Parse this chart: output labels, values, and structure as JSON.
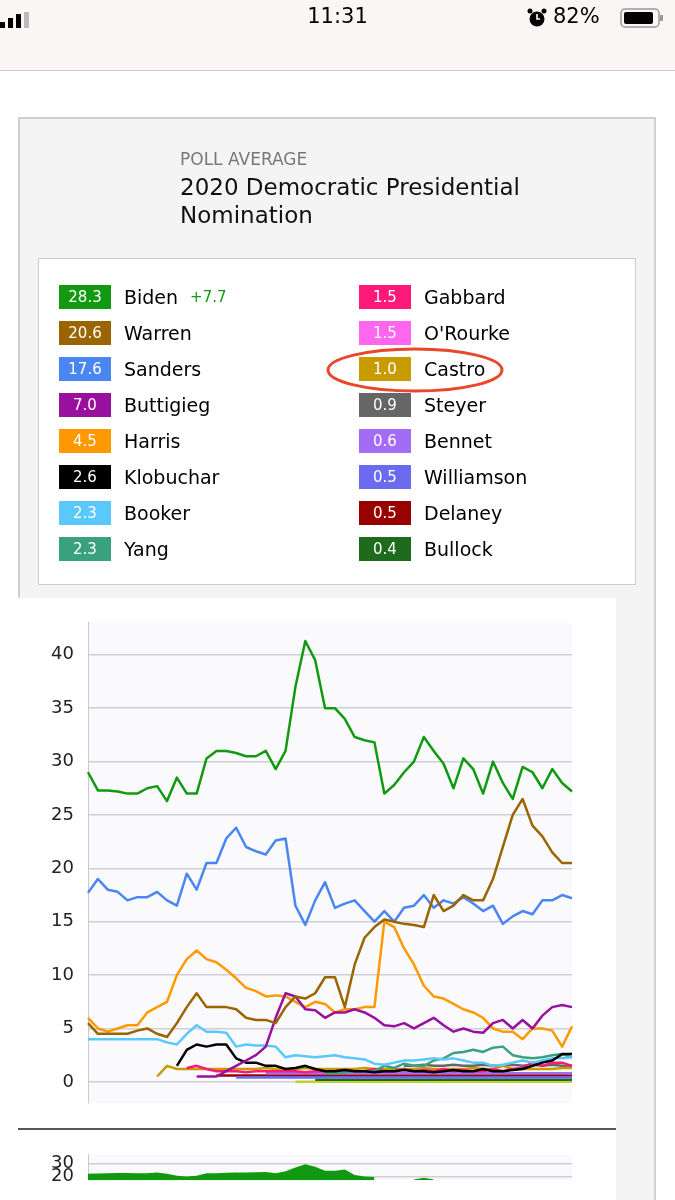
{
  "chart_data": [
    {
      "type": "line",
      "title": "2020 Democratic Presidential Nomination",
      "subtitle": "POLL AVERAGE",
      "legend": "top",
      "grid": "y",
      "tick_labels": "y",
      "ylim": [
        -2,
        43
      ],
      "yticks": [
        0,
        5,
        10,
        15,
        20,
        25,
        30,
        35,
        40
      ],
      "categories": [
        null,
        null,
        null,
        null,
        null,
        null,
        null,
        null,
        null,
        null,
        null,
        null,
        null,
        null,
        null,
        null,
        null,
        null,
        null,
        null,
        null,
        null,
        null,
        null,
        null,
        null,
        null,
        null,
        null,
        null,
        null,
        null,
        null,
        null,
        null,
        null,
        null,
        null,
        null,
        null,
        null,
        null,
        null,
        null,
        null,
        null,
        null,
        null,
        null,
        null
      ],
      "annotations": [
        "28.3",
        "20.6",
        "17.6",
        "7.0",
        "4.5",
        "2.6",
        "2.3",
        "2.3",
        "1.5",
        "1.5",
        "1.0",
        "0.9",
        "0.6",
        "0.5",
        "0.5",
        "0.4",
        "+7.7",
        "11:31",
        "82%"
      ],
      "series": [
        {
          "name": "Biden",
          "color": "#119911",
          "values": [
            29,
            27.3,
            27.3,
            27.2,
            27,
            27,
            27.5,
            27.7,
            26.3,
            28.5,
            27,
            27,
            30.3,
            31,
            31,
            30.8,
            30.5,
            30.5,
            31,
            29.3,
            31,
            37,
            41.3,
            39.5,
            35,
            35,
            34,
            32.3,
            32,
            31.8,
            27,
            27.8,
            29,
            30,
            32.3,
            31,
            29.8,
            27.5,
            30.3,
            29.3,
            27,
            30,
            28,
            26.5,
            29.5,
            29,
            27.5,
            29.3,
            28,
            27.2
          ]
        },
        {
          "name": "Warren",
          "color": "#9a6400",
          "values": [
            5.5,
            4.5,
            4.5,
            4.5,
            4.5,
            4.8,
            5,
            4.5,
            4.2,
            5.5,
            7,
            8.3,
            7,
            7,
            7,
            6.8,
            6,
            5.8,
            5.8,
            5.5,
            7,
            8,
            7.8,
            8.3,
            9.8,
            9.8,
            7,
            11,
            13.5,
            14.5,
            15.2,
            15,
            14.8,
            14.7,
            14.5,
            17.5,
            16,
            16.5,
            17.5,
            17,
            17,
            19,
            22,
            25,
            26.5,
            24,
            23,
            21.5,
            20.5,
            20.5
          ]
        },
        {
          "name": "Sanders",
          "color": "#4a86f2",
          "values": [
            17.7,
            19,
            18,
            17.8,
            17,
            17.3,
            17.3,
            17.8,
            17,
            16.5,
            19.5,
            18,
            20.5,
            20.5,
            22.8,
            23.8,
            22,
            21.6,
            21.3,
            22.6,
            22.8,
            16.5,
            14.7,
            17,
            18.7,
            16.3,
            16.7,
            17,
            16,
            15,
            16,
            15,
            16.3,
            16.5,
            17.5,
            16.3,
            17,
            16.7,
            17.3,
            16.7,
            16,
            16.5,
            14.8,
            15.5,
            16,
            15.7,
            17,
            17,
            17.5,
            17.2
          ]
        },
        {
          "name": "Buttigieg",
          "color": "#990f9e",
          "values": [
            null,
            null,
            null,
            null,
            null,
            null,
            null,
            null,
            null,
            null,
            null,
            0.5,
            0.5,
            0.5,
            1,
            1.5,
            2,
            2.5,
            3.3,
            6,
            8.3,
            8,
            6.8,
            6.7,
            6,
            6.5,
            6.5,
            6.8,
            6.5,
            6,
            5.3,
            5.2,
            5.5,
            5,
            5.5,
            6,
            5.3,
            4.7,
            5,
            4.7,
            4.6,
            5.5,
            5.8,
            5,
            5.8,
            5,
            6.2,
            7,
            7.2,
            7
          ]
        },
        {
          "name": "Harris",
          "color": "#ff9900",
          "values": [
            6,
            5,
            4.7,
            5,
            5.3,
            5.3,
            6.5,
            7,
            7.5,
            10,
            11.5,
            12.3,
            11.5,
            11.2,
            10.5,
            9.7,
            8.8,
            8.5,
            8,
            8.1,
            8,
            7.5,
            7,
            7.5,
            7.3,
            6.5,
            6.8,
            6.8,
            7,
            7,
            15,
            14.5,
            12.5,
            11,
            9,
            8,
            7.8,
            7.3,
            6.8,
            6.5,
            6,
            5,
            4.7,
            4.7,
            4,
            5,
            5,
            4.8,
            3.3,
            5.2
          ]
        },
        {
          "name": "Klobuchar",
          "color": "#000000",
          "values": [
            null,
            null,
            null,
            null,
            null,
            null,
            null,
            null,
            null,
            1.5,
            3,
            3.5,
            3.3,
            3.5,
            3.5,
            2.2,
            1.8,
            1.8,
            1.5,
            1.5,
            1.2,
            1.3,
            1.5,
            1.2,
            1,
            1,
            1.1,
            1,
            1,
            0.9,
            1,
            1,
            1.1,
            1,
            1,
            0.9,
            1,
            1.1,
            1,
            1,
            1.2,
            1,
            1,
            1.1,
            1.2,
            1.5,
            1.8,
            2,
            2.6,
            2.6
          ]
        },
        {
          "name": "Booker",
          "color": "#5ac8fa",
          "values": [
            4,
            4,
            4,
            4,
            4,
            4,
            4,
            4,
            3.7,
            3.5,
            4.5,
            5.3,
            4.7,
            4.7,
            4.6,
            3.3,
            3.5,
            3.4,
            3.4,
            3.3,
            2.3,
            2.5,
            2.4,
            2.3,
            2.4,
            2.5,
            2.3,
            2.2,
            2.1,
            1.7,
            1.6,
            1.8,
            2,
            2,
            2.1,
            2.2,
            2.1,
            2.2,
            2,
            1.8,
            1.8,
            1.5,
            1.6,
            1.8,
            2,
            1.8,
            2,
            2.2,
            2.2,
            2.3
          ]
        },
        {
          "name": "Yang",
          "color": "#3aa17e",
          "values": [
            null,
            null,
            null,
            null,
            null,
            null,
            null,
            null,
            null,
            null,
            null,
            null,
            null,
            null,
            null,
            null,
            null,
            null,
            null,
            null,
            null,
            null,
            null,
            null,
            0.8,
            0.8,
            0.9,
            1,
            1,
            1,
            1.5,
            1.3,
            1.7,
            1.5,
            1.5,
            2,
            2.2,
            2.7,
            2.8,
            3,
            2.8,
            3.2,
            3.3,
            2.5,
            2.3,
            2.2,
            2.3,
            2.5,
            2.6,
            2.3
          ]
        },
        {
          "name": "Gabbard",
          "color": "#ff1a7a",
          "values": [
            null,
            null,
            null,
            null,
            null,
            null,
            null,
            null,
            null,
            null,
            1.3,
            1.5,
            1.2,
            1,
            1,
            1,
            0.9,
            1,
            1,
            1,
            1,
            1,
            0.9,
            1,
            1,
            1,
            1.1,
            1,
            1,
            1.2,
            1,
            1,
            1.2,
            1,
            1.1,
            1,
            1.2,
            1,
            1.1,
            1,
            1,
            1.2,
            1,
            1.2,
            1.3,
            1.8,
            1.5,
            1.8,
            1.8,
            1.5
          ]
        },
        {
          "name": "O'Rourke",
          "color": "#ff66ee",
          "values": [
            null,
            null,
            null,
            null,
            null,
            null,
            null,
            null,
            null,
            null,
            null,
            null,
            null,
            null,
            null,
            null,
            null,
            null,
            null,
            null,
            null,
            null,
            null,
            null,
            null,
            null,
            null,
            null,
            null,
            null,
            null,
            null,
            null,
            null,
            null,
            null,
            null,
            null,
            null,
            null,
            null,
            null,
            null,
            null,
            null,
            null,
            null,
            null,
            null,
            null
          ]
        },
        {
          "name": "Castro",
          "color": "#c89b00",
          "values": [
            null,
            null,
            null,
            null,
            null,
            null,
            null,
            0.5,
            1.5,
            1.2,
            1.2,
            1.2,
            1.2,
            1.2,
            1.2,
            1.2,
            1.2,
            1.2,
            1.3,
            1.2,
            1.2,
            1.2,
            1.3,
            1.2,
            1.2,
            1.2,
            1.2,
            1.2,
            1.3,
            1.2,
            1.2,
            1.2,
            1.2,
            1.2,
            1.3,
            1.2,
            1.2,
            1.2,
            1.2,
            1.3,
            1.2,
            1.2,
            1.5,
            1.2,
            1.2,
            1.2,
            1.2,
            1.2,
            1.3,
            1.3
          ]
        },
        {
          "name": "Steyer",
          "color": "#666666",
          "values": [
            null,
            null,
            null,
            null,
            null,
            null,
            null,
            null,
            null,
            null,
            null,
            null,
            null,
            null,
            null,
            null,
            null,
            null,
            null,
            null,
            null,
            null,
            null,
            null,
            null,
            null,
            null,
            null,
            null,
            null,
            null,
            null,
            1.5,
            1.5,
            1.6,
            1.5,
            1.5,
            1.6,
            1.5,
            1.5,
            1.6,
            1.5,
            1.5,
            1.6,
            1.5,
            1.6,
            1.5,
            1.6,
            1.5,
            1.5
          ]
        },
        {
          "name": "Bennet",
          "color": "#a36cf5",
          "values": [
            null,
            null,
            null,
            null,
            null,
            null,
            null,
            null,
            null,
            null,
            null,
            null,
            null,
            null,
            null,
            null,
            null,
            null,
            0.8,
            0.8,
            0.8,
            0.8,
            0.8,
            0.8,
            0.8,
            0.8,
            0.8,
            0.8,
            0.8,
            0.8,
            0.8,
            0.8,
            0.8,
            0.8,
            0.8,
            0.8,
            0.8,
            0.8,
            0.8,
            0.8,
            0.8,
            0.8,
            0.8,
            0.8,
            0.8,
            0.8,
            0.8,
            0.8,
            0.8,
            0.8
          ]
        },
        {
          "name": "Williamson",
          "color": "#6b6bf0",
          "values": [
            null,
            null,
            null,
            null,
            null,
            null,
            null,
            null,
            null,
            null,
            null,
            null,
            null,
            null,
            null,
            0.4,
            0.4,
            0.4,
            0.4,
            0.4,
            0.4,
            0.4,
            0.4,
            0.4,
            0.4,
            0.4,
            0.4,
            0.4,
            0.4,
            0.4,
            0.4,
            0.4,
            0.4,
            0.4,
            0.4,
            0.4,
            0.4,
            0.4,
            0.4,
            0.4,
            0.4,
            0.4,
            0.4,
            0.4,
            0.4,
            0.4,
            0.4,
            0.4,
            0.4,
            0.4
          ]
        },
        {
          "name": "Delaney",
          "color": "#990000",
          "values": [
            null,
            null,
            null,
            null,
            null,
            null,
            null,
            null,
            null,
            null,
            null,
            null,
            null,
            0.6,
            0.6,
            0.6,
            0.6,
            0.6,
            0.6,
            0.6,
            0.6,
            0.6,
            0.6,
            0.6,
            0.6,
            0.6,
            0.6,
            0.6,
            0.6,
            0.6,
            0.6,
            0.6,
            0.6,
            0.6,
            0.6,
            0.6,
            0.6,
            0.6,
            0.6,
            0.6,
            0.6,
            0.6,
            0.6,
            0.6,
            0.6,
            0.6,
            0.6,
            0.6,
            0.6,
            0.6
          ]
        },
        {
          "name": "Bullock",
          "color": "#1e6b1e",
          "values": [
            null,
            null,
            null,
            null,
            null,
            null,
            null,
            null,
            null,
            null,
            null,
            null,
            null,
            null,
            null,
            null,
            null,
            null,
            null,
            null,
            null,
            null,
            null,
            0.2,
            0.2,
            0.2,
            0.2,
            0.2,
            0.2,
            0.2,
            0.2,
            0.2,
            0.2,
            0.2,
            0.2,
            0.2,
            0.2,
            0.2,
            0.2,
            0.2,
            0.2,
            0.2,
            0.2,
            0.2,
            0.2,
            0.2,
            0.2,
            0.2,
            0.2,
            0.2
          ]
        },
        {
          "color": "#c3d12b",
          "values": [
            null,
            null,
            null,
            null,
            null,
            null,
            null,
            null,
            null,
            null,
            null,
            null,
            null,
            null,
            null,
            null,
            null,
            null,
            null,
            null,
            null,
            0,
            0,
            0,
            0,
            0,
            0,
            0,
            0,
            0,
            0,
            0,
            0,
            0,
            0,
            0,
            0,
            0,
            0,
            0,
            0,
            0,
            0,
            0,
            0,
            0,
            0,
            0,
            0,
            0
          ]
        }
      ]
    },
    {
      "type": "area",
      "tick_labels": "y",
      "grid": "y",
      "ylim": [
        17,
        37
      ],
      "yticks": [
        20,
        30
      ],
      "categories": [
        null,
        null,
        null,
        null,
        null,
        null,
        null,
        null,
        null,
        null,
        null,
        null,
        null,
        null,
        null,
        null,
        null,
        null,
        null,
        null,
        null,
        null,
        null,
        null,
        null,
        null,
        null,
        null,
        null,
        null,
        null,
        null,
        null,
        null,
        null,
        null,
        null,
        null,
        null,
        null,
        null,
        null,
        null,
        null,
        null,
        null,
        null,
        null,
        null,
        null
      ],
      "series": [
        {
          "color": "#119911",
          "values": [
            22,
            22.3,
            22.5,
            22.6,
            22.7,
            22.5,
            22.5,
            23,
            22,
            20.5,
            20,
            20.5,
            22.5,
            22.5,
            22.8,
            23,
            23,
            23.3,
            23.5,
            22.5,
            24,
            27,
            29.5,
            27.5,
            24.5,
            24.5,
            25.5,
            21,
            20,
            19.5,
            null,
            null,
            null,
            17.5,
            19,
            17.5,
            null,
            null,
            null,
            null,
            null,
            null,
            null,
            null,
            null,
            null,
            null,
            null,
            null,
            null
          ]
        }
      ]
    }
  ]
}
